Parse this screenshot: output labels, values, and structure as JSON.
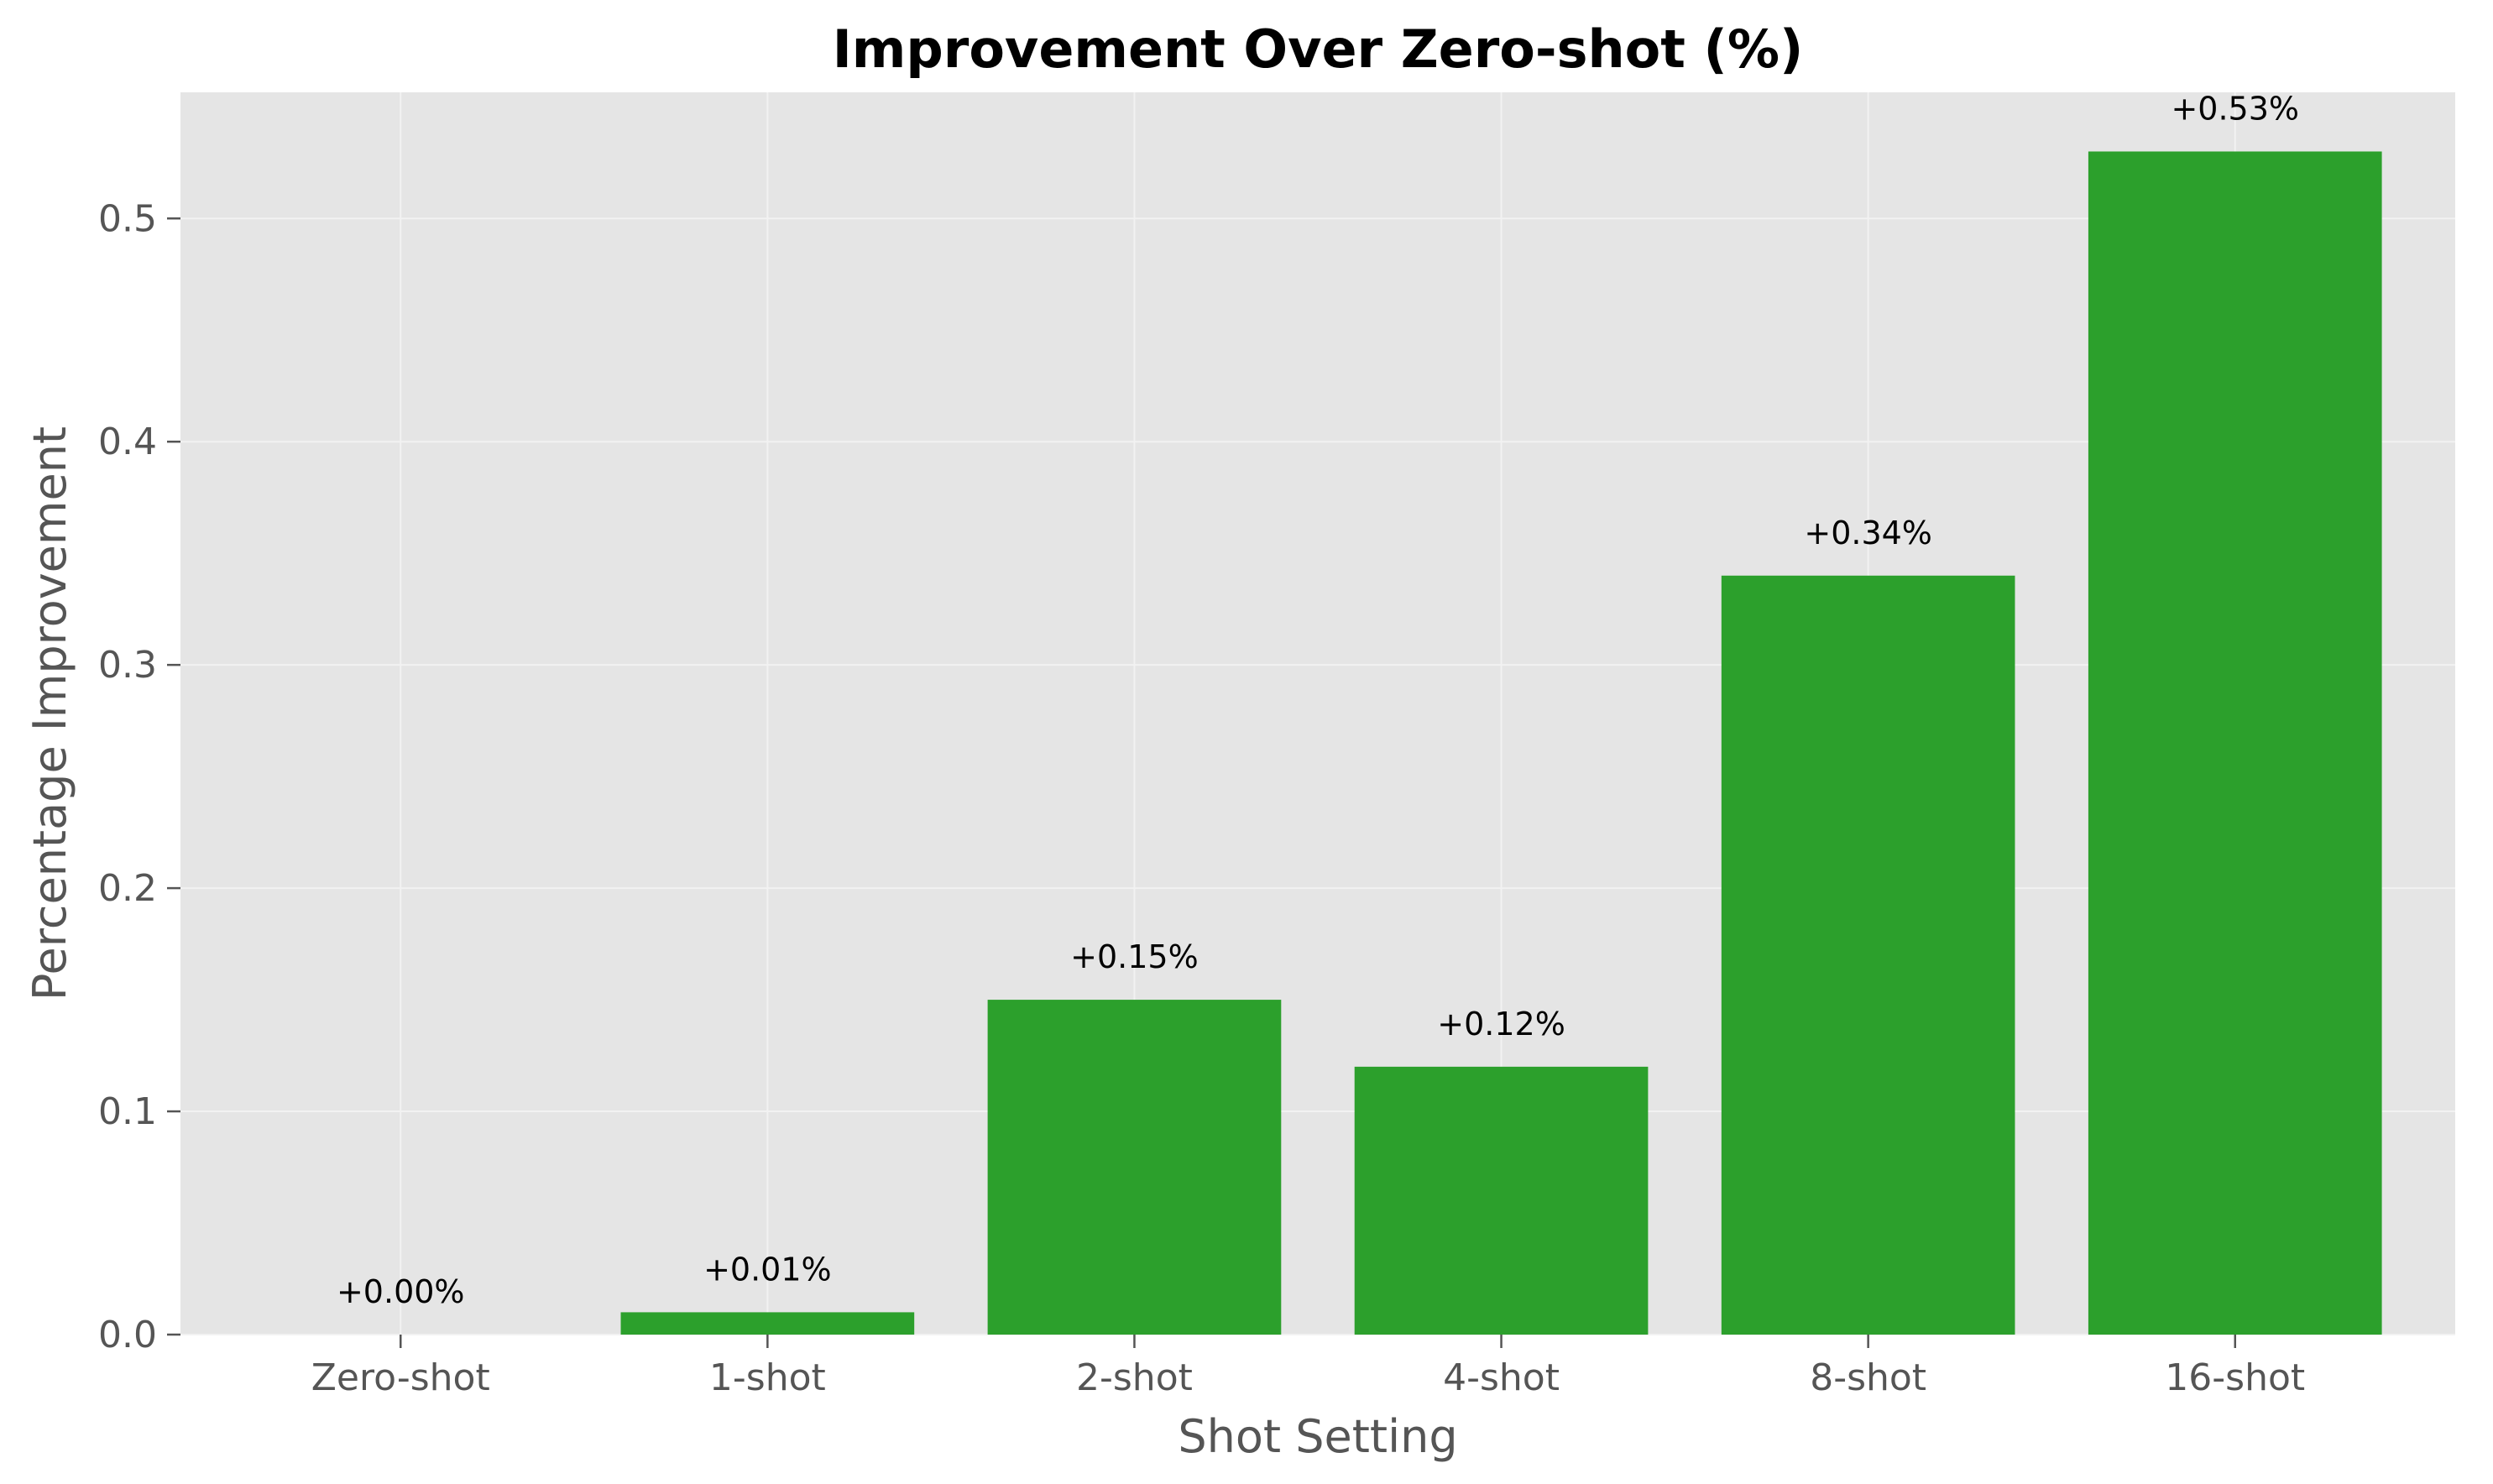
{
  "chart_data": {
    "type": "bar",
    "title": "Improvement Over Zero-shot (%)",
    "xlabel": "Shot Setting",
    "ylabel": "Percentage Improvement",
    "categories": [
      "Zero-shot",
      "1-shot",
      "2-shot",
      "4-shot",
      "8-shot",
      "16-shot"
    ],
    "values": [
      0.0,
      0.01,
      0.15,
      0.12,
      0.34,
      0.53
    ],
    "data_labels": [
      "+0.00%",
      "+0.01%",
      "+0.15%",
      "+0.12%",
      "+0.34%",
      "+0.53%"
    ],
    "yticks": [
      0.0,
      0.1,
      0.2,
      0.3,
      0.4,
      0.5
    ],
    "ytick_labels": [
      "0.0",
      "0.1",
      "0.2",
      "0.3",
      "0.4",
      "0.5"
    ],
    "ylim": [
      0,
      0.5565
    ],
    "grid": true,
    "colors": {
      "bar": "#2ca02c",
      "plot_background": "#e5e5e5",
      "grid": "#f2f2f2"
    }
  }
}
